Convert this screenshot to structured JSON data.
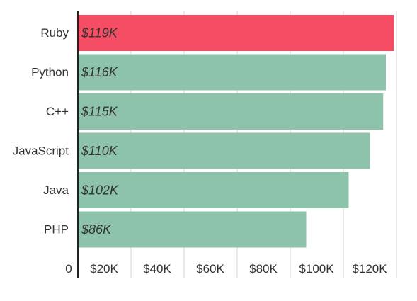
{
  "chart_data": {
    "type": "bar",
    "orientation": "horizontal",
    "categories": [
      "Ruby",
      "Python",
      "C++",
      "JavaScript",
      "Java",
      "PHP"
    ],
    "values": [
      119,
      116,
      115,
      110,
      102,
      86
    ],
    "data_labels": [
      "$119K",
      "$116K",
      "$115K",
      "$110K",
      "$102K",
      "$86K"
    ],
    "value_unit": "K USD",
    "x_ticks": [
      0,
      20,
      40,
      60,
      80,
      100,
      120
    ],
    "x_tick_labels": [
      "0",
      "$20K",
      "$40K",
      "$60K",
      "$80K",
      "$100K",
      "$120K"
    ],
    "xlim": [
      0,
      120
    ],
    "grid": true,
    "legend": "none",
    "title": "",
    "xlabel": "",
    "ylabel": "",
    "colors": {
      "highlight": "#f44d64",
      "default": "#8dc3aa",
      "highlight_category": "Ruby"
    }
  }
}
